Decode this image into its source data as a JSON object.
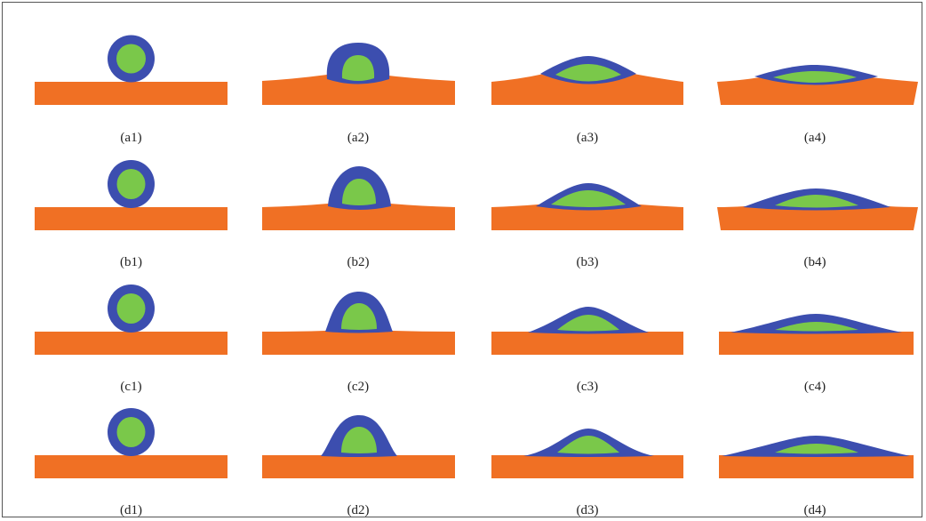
{
  "colors": {
    "substrate": "#F07024",
    "shell": "#3C4EAF",
    "core": "#7AC84A",
    "label": "#222222"
  },
  "rows": [
    "a",
    "b",
    "c",
    "d"
  ],
  "columns": [
    "1",
    "2",
    "3",
    "4"
  ],
  "panels": [
    {
      "label": "(a1)"
    },
    {
      "label": "(a2)"
    },
    {
      "label": "(a3)"
    },
    {
      "label": "(a4)"
    },
    {
      "label": "(b1)"
    },
    {
      "label": "(b2)"
    },
    {
      "label": "(b3)"
    },
    {
      "label": "(b4)"
    },
    {
      "label": "(c1)"
    },
    {
      "label": "(c2)"
    },
    {
      "label": "(c3)"
    },
    {
      "label": "(c4)"
    },
    {
      "label": "(d1)"
    },
    {
      "label": "(d2)"
    },
    {
      "label": "(d3)"
    },
    {
      "label": "(d4)"
    }
  ]
}
